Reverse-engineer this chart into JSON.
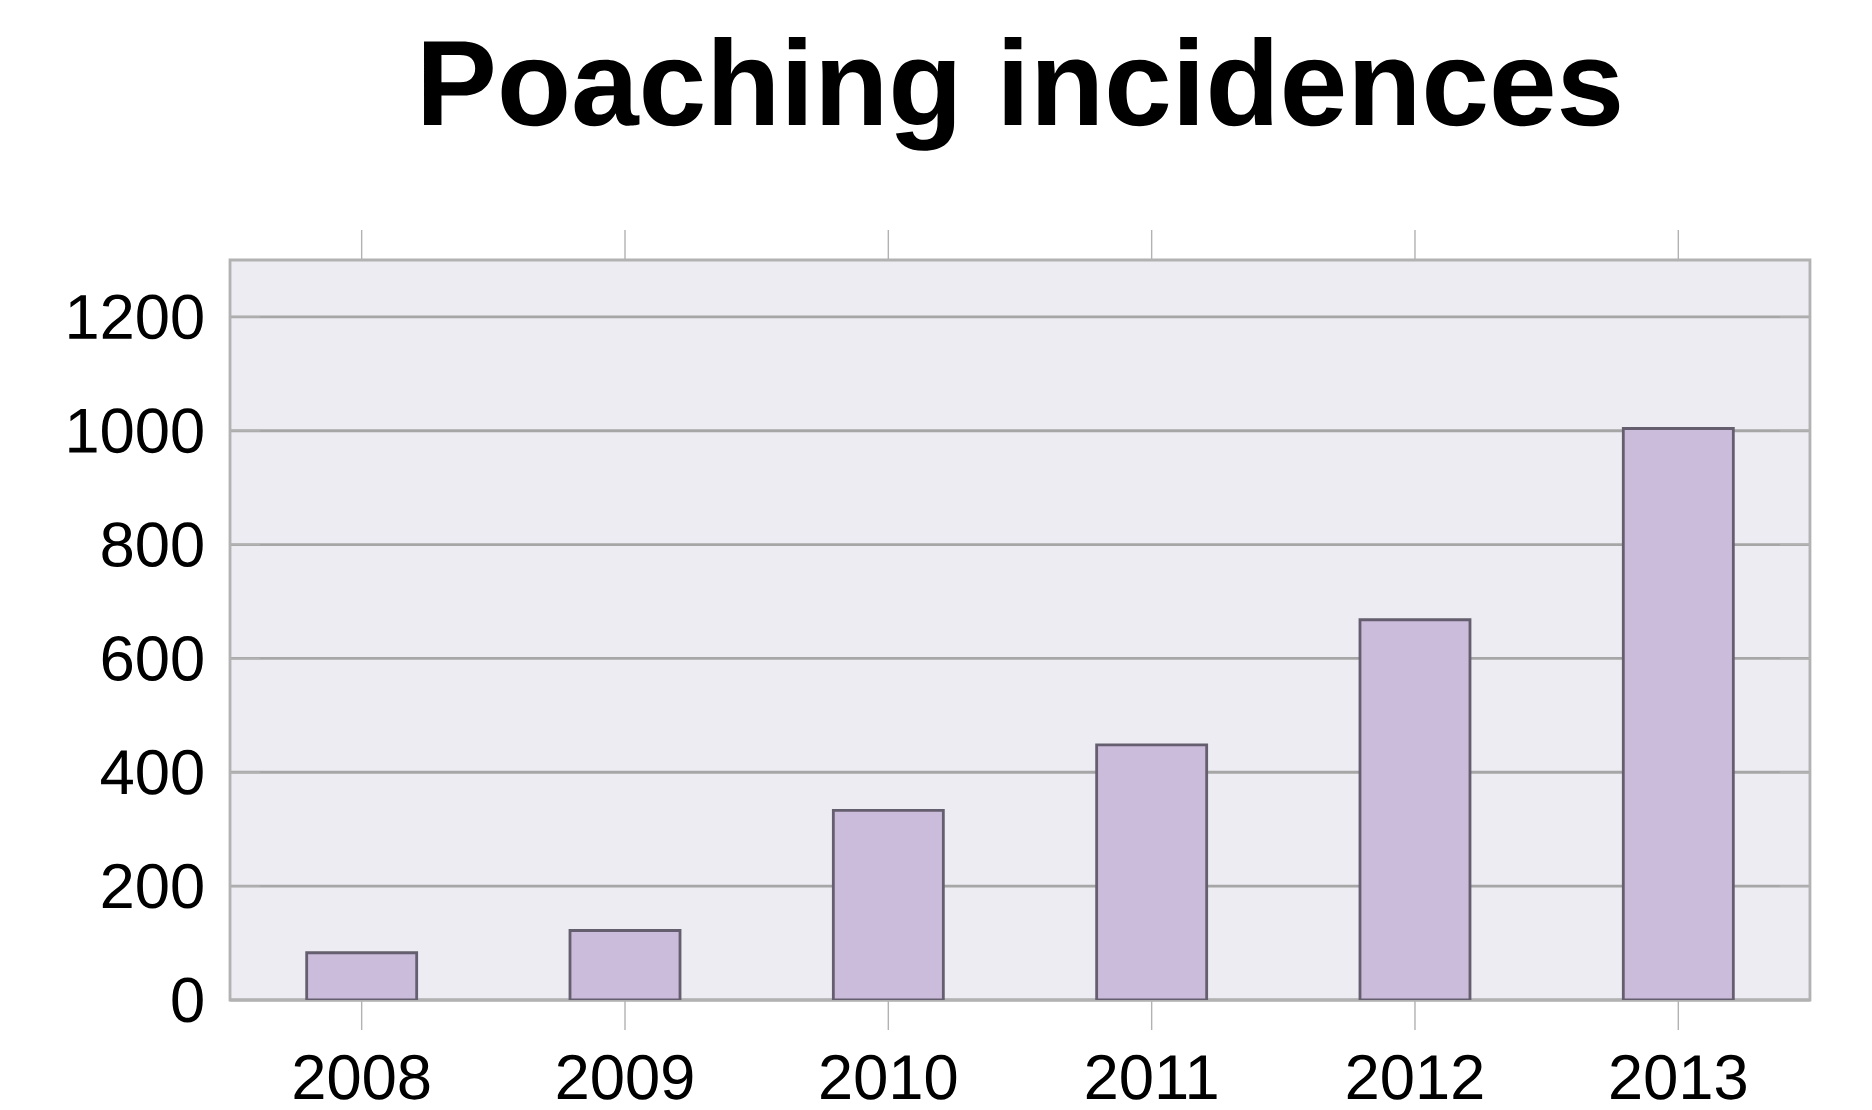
{
  "chart_data": {
    "type": "bar",
    "title": "Poaching incidences",
    "categories": [
      "2008",
      "2009",
      "2010",
      "2011",
      "2012",
      "2013"
    ],
    "values": [
      83,
      122,
      333,
      448,
      668,
      1004
    ],
    "color": "#cbbcdc",
    "ylim": [
      0,
      1300
    ],
    "yticks": [
      0,
      200,
      400,
      600,
      800,
      1000,
      1200
    ],
    "grid": "y"
  }
}
